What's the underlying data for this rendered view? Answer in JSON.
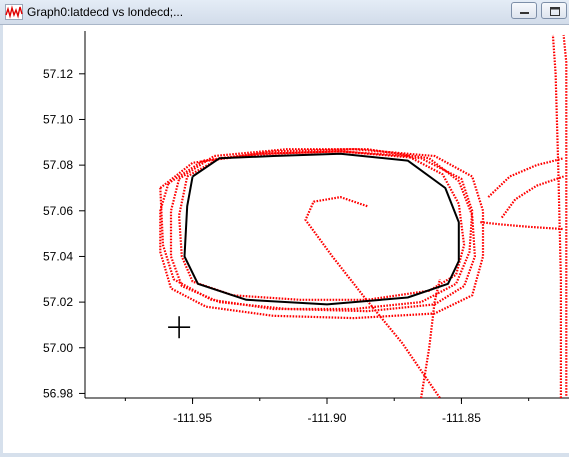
{
  "window": {
    "title": "Graph0:latdecd vs londecd;...",
    "buttons": [
      "minimize",
      "maximize"
    ],
    "app_icon": "wave-graph-icon"
  },
  "colors": {
    "trace": "#ff0000",
    "overlay": "#000000",
    "axis": "#000000"
  },
  "chart_data": {
    "type": "scatter",
    "title": "",
    "xlabel": "",
    "ylabel": "",
    "xlim": [
      -111.99,
      -111.81
    ],
    "ylim": [
      56.978,
      57.137
    ],
    "x_ticks": [
      -111.95,
      -111.9,
      -111.85
    ],
    "x_tick_labels": [
      "-111.95",
      "-111.90",
      "-111.85"
    ],
    "y_ticks": [
      56.98,
      57.0,
      57.02,
      57.04,
      57.06,
      57.08,
      57.1,
      57.12
    ],
    "y_tick_labels": [
      "56.98",
      "57.00",
      "57.02",
      "57.04",
      "57.06",
      "57.08",
      "57.10",
      "57.12"
    ],
    "grid": false,
    "marker": {
      "symbol": "cross",
      "x": -111.955,
      "y": 57.009
    },
    "series": [
      {
        "style": "dots",
        "color": "#ff0000",
        "loops": [
          [
            [
              -111.952,
              57.075
            ],
            [
              -111.94,
              57.083
            ],
            [
              -111.92,
              57.085
            ],
            [
              -111.895,
              57.086
            ],
            [
              -111.87,
              57.084
            ],
            [
              -111.857,
              57.076
            ],
            [
              -111.851,
              57.063
            ],
            [
              -111.849,
              57.045
            ],
            [
              -111.852,
              57.032
            ],
            [
              -111.862,
              57.025
            ],
            [
              -111.885,
              57.021
            ],
            [
              -111.91,
              57.021
            ],
            [
              -111.935,
              57.023
            ],
            [
              -111.95,
              57.029
            ],
            [
              -111.954,
              57.04
            ],
            [
              -111.955,
              57.058
            ],
            [
              -111.952,
              57.075
            ]
          ],
          [
            [
              -111.955,
              57.074
            ],
            [
              -111.942,
              57.084
            ],
            [
              -111.915,
              57.087
            ],
            [
              -111.885,
              57.087
            ],
            [
              -111.862,
              57.083
            ],
            [
              -111.851,
              57.073
            ],
            [
              -111.846,
              57.058
            ],
            [
              -111.845,
              57.04
            ],
            [
              -111.849,
              57.027
            ],
            [
              -111.86,
              57.019
            ],
            [
              -111.885,
              57.016
            ],
            [
              -111.915,
              57.017
            ],
            [
              -111.94,
              57.02
            ],
            [
              -111.954,
              57.027
            ],
            [
              -111.958,
              57.04
            ],
            [
              -111.958,
              57.06
            ],
            [
              -111.955,
              57.074
            ]
          ],
          [
            [
              -111.959,
              57.072
            ],
            [
              -111.946,
              57.082
            ],
            [
              -111.92,
              57.086
            ],
            [
              -111.89,
              57.087
            ],
            [
              -111.86,
              57.084
            ],
            [
              -111.846,
              57.075
            ],
            [
              -111.842,
              57.06
            ],
            [
              -111.842,
              57.04
            ],
            [
              -111.846,
              57.023
            ],
            [
              -111.86,
              57.015
            ],
            [
              -111.89,
              57.013
            ],
            [
              -111.92,
              57.014
            ],
            [
              -111.945,
              57.018
            ],
            [
              -111.958,
              57.026
            ],
            [
              -111.962,
              57.042
            ],
            [
              -111.962,
              57.06
            ],
            [
              -111.959,
              57.072
            ]
          ],
          [
            [
              -111.962,
              57.07
            ],
            [
              -111.95,
              57.081
            ],
            [
              -111.925,
              57.085
            ],
            [
              -111.895,
              57.086
            ],
            [
              -111.865,
              57.083
            ],
            [
              -111.85,
              57.074
            ],
            [
              -111.846,
              57.06
            ],
            [
              -111.847,
              57.042
            ],
            [
              -111.852,
              57.028
            ],
            [
              -111.865,
              57.02
            ],
            [
              -111.89,
              57.017
            ],
            [
              -111.92,
              57.017
            ],
            [
              -111.943,
              57.021
            ],
            [
              -111.957,
              57.03
            ],
            [
              -111.961,
              57.045
            ],
            [
              -111.962,
              57.07
            ]
          ]
        ],
        "tracks": [
          [
            [
              -111.835,
              57.057
            ],
            [
              -111.83,
              57.065
            ],
            [
              -111.822,
              57.071
            ],
            [
              -111.812,
              57.075
            ]
          ],
          [
            [
              -111.84,
              57.066
            ],
            [
              -111.832,
              57.075
            ],
            [
              -111.822,
              57.08
            ],
            [
              -111.812,
              57.083
            ]
          ],
          [
            [
              -111.843,
              57.055
            ],
            [
              -111.835,
              57.054
            ],
            [
              -111.825,
              57.053
            ],
            [
              -111.812,
              57.052
            ]
          ],
          [
            [
              -111.885,
              57.062
            ],
            [
              -111.895,
              57.066
            ],
            [
              -111.905,
              57.064
            ],
            [
              -111.908,
              57.056
            ],
            [
              -111.898,
              57.04
            ],
            [
              -111.886,
              57.022
            ],
            [
              -111.872,
              57.002
            ],
            [
              -111.858,
              56.978
            ]
          ],
          [
            [
              -111.865,
              56.978
            ],
            [
              -111.862,
              57.0
            ],
            [
              -111.86,
              57.02
            ],
            [
              -111.858,
              57.03
            ]
          ],
          [
            [
              -111.813,
              56.978
            ],
            [
              -111.813,
              57.03
            ],
            [
              -111.814,
              57.08
            ],
            [
              -111.815,
              57.12
            ],
            [
              -111.816,
              57.137
            ]
          ],
          [
            [
              -111.811,
              56.979
            ],
            [
              -111.811,
              57.03
            ],
            [
              -111.811,
              57.08
            ],
            [
              -111.811,
              57.125
            ],
            [
              -111.812,
              57.137
            ]
          ]
        ]
      },
      {
        "style": "line",
        "color": "#000000",
        "points": [
          [
            -111.95,
            57.075
          ],
          [
            -111.94,
            57.083
          ],
          [
            -111.92,
            57.084
          ],
          [
            -111.895,
            57.085
          ],
          [
            -111.87,
            57.082
          ],
          [
            -111.856,
            57.07
          ],
          [
            -111.851,
            57.055
          ],
          [
            -111.851,
            57.038
          ],
          [
            -111.855,
            57.028
          ],
          [
            -111.87,
            57.022
          ],
          [
            -111.9,
            57.019
          ],
          [
            -111.93,
            57.021
          ],
          [
            -111.948,
            57.028
          ],
          [
            -111.953,
            57.04
          ],
          [
            -111.952,
            57.062
          ],
          [
            -111.95,
            57.075
          ]
        ]
      }
    ]
  }
}
